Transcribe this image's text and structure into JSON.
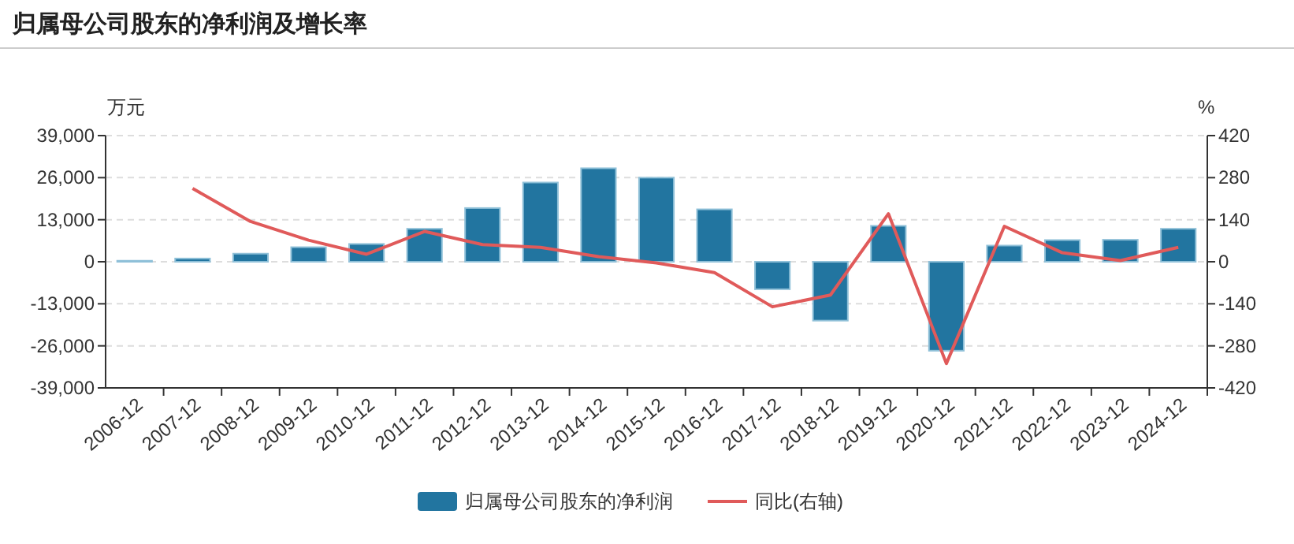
{
  "chart_data": {
    "type": "bar",
    "title": "归属母公司股东的净利润及增长率",
    "ylabel": "万元",
    "y2label": "%",
    "categories": [
      "2006-12",
      "2007-12",
      "2008-12",
      "2009-12",
      "2010-12",
      "2011-12",
      "2012-12",
      "2013-12",
      "2014-12",
      "2015-12",
      "2016-12",
      "2017-12",
      "2018-12",
      "2019-12",
      "2020-12",
      "2021-12",
      "2022-12",
      "2023-12",
      "2024-12"
    ],
    "series": [
      {
        "name": "归属母公司股东的净利润",
        "color": "#2275a0",
        "values": [
          300,
          1000,
          2500,
          4500,
          5500,
          10200,
          16600,
          24500,
          28900,
          26000,
          16200,
          -8500,
          -18200,
          11100,
          -27500,
          5000,
          6700,
          6800,
          10200
        ]
      },
      {
        "name": "同比(右轴)",
        "type": "line",
        "axis": "y2",
        "color": "#e05a5a",
        "values": [
          null,
          244,
          134,
          72,
          25,
          101,
          57,
          48,
          17,
          -4,
          -36,
          -150,
          -111,
          160,
          -339,
          118,
          30,
          4,
          48
        ]
      }
    ],
    "ylim": [
      -39000,
      39000
    ],
    "yticks": [
      {
        "value": -39000,
        "label": "-39,000"
      },
      {
        "value": -26000,
        "label": "-26,000"
      },
      {
        "value": -13000,
        "label": "-13,000"
      },
      0,
      {
        "value": 13000,
        "label": "13,000"
      },
      {
        "value": 26000,
        "label": "26,000"
      },
      {
        "value": 39000,
        "label": "39,000"
      }
    ],
    "y2lim": [
      -420,
      420
    ],
    "y2ticks": [
      -420,
      -280,
      -140,
      0,
      140,
      280,
      420
    ],
    "grid": "y",
    "legend": "bottom"
  }
}
